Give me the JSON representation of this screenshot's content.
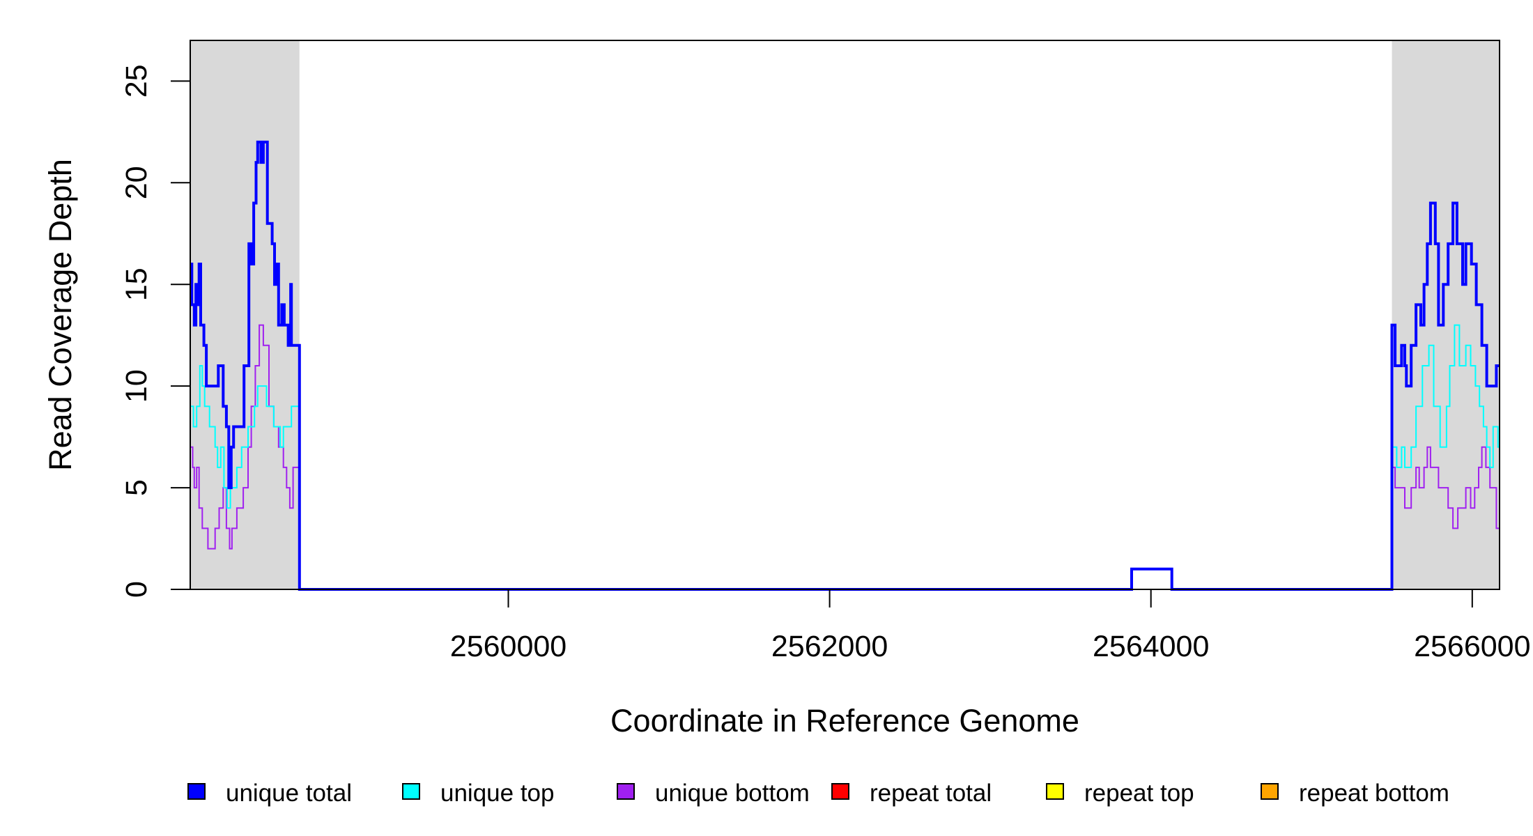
{
  "chart_data": {
    "type": "line",
    "step": true,
    "xlabel": "Coordinate in Reference Genome",
    "ylabel": "Read Coverage Depth",
    "xlim": [
      2558020,
      2566170
    ],
    "ylim": [
      0,
      27
    ],
    "xticks": [
      2560000,
      2562000,
      2564000,
      2566000
    ],
    "xtick_labels": [
      "2560000",
      "2562000",
      "2564000",
      "2566000"
    ],
    "yticks": [
      0,
      5,
      10,
      15,
      20,
      25
    ],
    "ytick_labels": [
      "0",
      "5",
      "10",
      "15",
      "20",
      "25"
    ],
    "shaded_regions": [
      {
        "x0": 2558020,
        "x1": 2558700,
        "color": "#d9d9d9"
      },
      {
        "x0": 2565500,
        "x1": 2566170,
        "color": "#d9d9d9"
      }
    ],
    "grid": false,
    "legend_position": "bottom",
    "legend": [
      {
        "name": "unique total",
        "color": "#0000ff"
      },
      {
        "name": "unique top",
        "color": "#00ffff"
      },
      {
        "name": "unique bottom",
        "color": "#a020f0"
      },
      {
        "name": "repeat total",
        "color": "#ff0000"
      },
      {
        "name": "repeat top",
        "color": "#ffff00"
      },
      {
        "name": "repeat bottom",
        "color": "#ffa500"
      }
    ],
    "series": [
      {
        "name": "unique total",
        "color": "#0000ff",
        "stroke_width": 4,
        "points": [
          [
            2558020,
            16
          ],
          [
            2558030,
            14
          ],
          [
            2558045,
            13
          ],
          [
            2558055,
            15
          ],
          [
            2558065,
            14
          ],
          [
            2558075,
            16
          ],
          [
            2558085,
            13
          ],
          [
            2558105,
            12
          ],
          [
            2558120,
            10
          ],
          [
            2558195,
            11
          ],
          [
            2558225,
            9
          ],
          [
            2558245,
            8
          ],
          [
            2558260,
            5
          ],
          [
            2558275,
            7
          ],
          [
            2558290,
            8
          ],
          [
            2558355,
            11
          ],
          [
            2558385,
            17
          ],
          [
            2558400,
            16
          ],
          [
            2558415,
            19
          ],
          [
            2558430,
            21
          ],
          [
            2558440,
            22
          ],
          [
            2558460,
            21
          ],
          [
            2558475,
            22
          ],
          [
            2558500,
            18
          ],
          [
            2558530,
            17
          ],
          [
            2558545,
            15
          ],
          [
            2558555,
            16
          ],
          [
            2558570,
            13
          ],
          [
            2558590,
            14
          ],
          [
            2558605,
            13
          ],
          [
            2558630,
            12
          ],
          [
            2558645,
            15
          ],
          [
            2558650,
            12
          ],
          [
            2558700,
            0
          ],
          [
            2563880,
            1
          ],
          [
            2564130,
            0
          ],
          [
            2565500,
            13
          ],
          [
            2565520,
            11
          ],
          [
            2565560,
            12
          ],
          [
            2565580,
            11
          ],
          [
            2565590,
            10
          ],
          [
            2565620,
            12
          ],
          [
            2565650,
            14
          ],
          [
            2565680,
            13
          ],
          [
            2565700,
            15
          ],
          [
            2565720,
            17
          ],
          [
            2565740,
            19
          ],
          [
            2565770,
            17
          ],
          [
            2565790,
            13
          ],
          [
            2565820,
            15
          ],
          [
            2565850,
            17
          ],
          [
            2565880,
            19
          ],
          [
            2565905,
            17
          ],
          [
            2565940,
            15
          ],
          [
            2565960,
            17
          ],
          [
            2565995,
            16
          ],
          [
            2566025,
            14
          ],
          [
            2566060,
            12
          ],
          [
            2566090,
            10
          ],
          [
            2566150,
            11
          ]
        ]
      },
      {
        "name": "unique top",
        "color": "#00ffff",
        "stroke_width": 2,
        "points": [
          [
            2558020,
            9
          ],
          [
            2558040,
            8
          ],
          [
            2558060,
            9
          ],
          [
            2558080,
            11
          ],
          [
            2558095,
            10
          ],
          [
            2558110,
            9
          ],
          [
            2558140,
            8
          ],
          [
            2558175,
            7
          ],
          [
            2558190,
            6
          ],
          [
            2558210,
            7
          ],
          [
            2558230,
            5
          ],
          [
            2558250,
            4
          ],
          [
            2558270,
            5
          ],
          [
            2558310,
            6
          ],
          [
            2558340,
            7
          ],
          [
            2558380,
            8
          ],
          [
            2558420,
            9
          ],
          [
            2558440,
            10
          ],
          [
            2558495,
            9
          ],
          [
            2558540,
            8
          ],
          [
            2558580,
            7
          ],
          [
            2558600,
            8
          ],
          [
            2558650,
            9
          ],
          [
            2558700,
            0
          ],
          [
            2565500,
            7
          ],
          [
            2565530,
            6
          ],
          [
            2565560,
            7
          ],
          [
            2565580,
            6
          ],
          [
            2565620,
            7
          ],
          [
            2565650,
            9
          ],
          [
            2565690,
            11
          ],
          [
            2565730,
            12
          ],
          [
            2565760,
            9
          ],
          [
            2565800,
            7
          ],
          [
            2565840,
            9
          ],
          [
            2565860,
            11
          ],
          [
            2565890,
            13
          ],
          [
            2565920,
            11
          ],
          [
            2565960,
            12
          ],
          [
            2565990,
            11
          ],
          [
            2566020,
            10
          ],
          [
            2566045,
            9
          ],
          [
            2566070,
            8
          ],
          [
            2566090,
            7
          ],
          [
            2566110,
            6
          ],
          [
            2566130,
            8
          ],
          [
            2566160,
            7
          ]
        ]
      },
      {
        "name": "unique bottom",
        "color": "#a020f0",
        "stroke_width": 2,
        "points": [
          [
            2558020,
            7
          ],
          [
            2558035,
            6
          ],
          [
            2558045,
            5
          ],
          [
            2558060,
            6
          ],
          [
            2558075,
            4
          ],
          [
            2558095,
            3
          ],
          [
            2558130,
            2
          ],
          [
            2558175,
            3
          ],
          [
            2558200,
            4
          ],
          [
            2558225,
            5
          ],
          [
            2558245,
            3
          ],
          [
            2558265,
            2
          ],
          [
            2558280,
            3
          ],
          [
            2558310,
            4
          ],
          [
            2558350,
            5
          ],
          [
            2558380,
            7
          ],
          [
            2558400,
            9
          ],
          [
            2558425,
            11
          ],
          [
            2558450,
            13
          ],
          [
            2558475,
            12
          ],
          [
            2558510,
            9
          ],
          [
            2558540,
            8
          ],
          [
            2558570,
            7
          ],
          [
            2558600,
            6
          ],
          [
            2558620,
            5
          ],
          [
            2558640,
            4
          ],
          [
            2558660,
            6
          ],
          [
            2558700,
            0
          ],
          [
            2565500,
            6
          ],
          [
            2565520,
            5
          ],
          [
            2565580,
            4
          ],
          [
            2565620,
            5
          ],
          [
            2565650,
            6
          ],
          [
            2565670,
            5
          ],
          [
            2565700,
            6
          ],
          [
            2565720,
            7
          ],
          [
            2565740,
            6
          ],
          [
            2565790,
            5
          ],
          [
            2565850,
            4
          ],
          [
            2565880,
            3
          ],
          [
            2565910,
            4
          ],
          [
            2565960,
            5
          ],
          [
            2565990,
            4
          ],
          [
            2566015,
            5
          ],
          [
            2566040,
            6
          ],
          [
            2566060,
            7
          ],
          [
            2566085,
            6
          ],
          [
            2566110,
            5
          ],
          [
            2566150,
            3
          ]
        ]
      },
      {
        "name": "repeat total",
        "color": "#ff0000",
        "stroke_width": 2,
        "points": [
          [
            2558020,
            0
          ],
          [
            2558700,
            0
          ],
          [
            2565500,
            0
          ],
          [
            2566170,
            0
          ]
        ]
      },
      {
        "name": "repeat top",
        "color": "#ffff00",
        "stroke_width": 2,
        "points": [
          [
            2558020,
            0
          ],
          [
            2558700,
            0
          ],
          [
            2565500,
            0
          ],
          [
            2566170,
            0
          ]
        ]
      },
      {
        "name": "repeat bottom",
        "color": "#ffa500",
        "stroke_width": 2,
        "points": [
          [
            2558020,
            0
          ],
          [
            2558700,
            0
          ],
          [
            2565500,
            0
          ],
          [
            2566170,
            0
          ]
        ]
      }
    ]
  }
}
